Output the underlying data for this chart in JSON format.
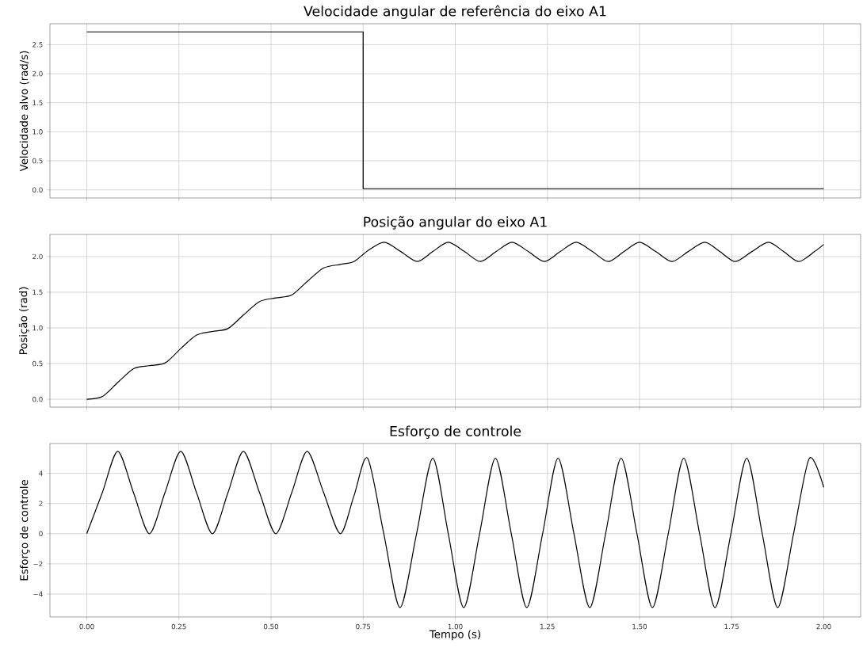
{
  "chart_data": [
    {
      "type": "step",
      "title": "Velocidade angular de referência do eixo A1",
      "ylabel": "Velocidade alvo (rad/s)",
      "color": "#000000",
      "grid": true,
      "tick_labels": "y",
      "x": [
        0,
        0.75,
        2.0
      ],
      "values": [
        2.72,
        0.02,
        0.02
      ],
      "xlim": [
        -0.1,
        2.1
      ],
      "ylim": [
        -0.14,
        2.86
      ],
      "xticks": [
        {
          "value": 0,
          "label": null
        },
        {
          "value": 0.25,
          "label": null
        },
        {
          "value": 0.5,
          "label": null
        },
        {
          "value": 0.75,
          "label": null
        },
        {
          "value": 1,
          "label": null
        },
        {
          "value": 1.25,
          "label": null
        },
        {
          "value": 1.5,
          "label": null
        },
        {
          "value": 1.75,
          "label": null
        },
        {
          "value": 2,
          "label": null
        }
      ],
      "yticks": [
        {
          "value": 0,
          "label": "0.0"
        },
        {
          "value": 0.5,
          "label": "0.5"
        },
        {
          "value": 1,
          "label": "1.0"
        },
        {
          "value": 1.5,
          "label": "1.5"
        },
        {
          "value": 2,
          "label": "2.0"
        },
        {
          "value": 2.5,
          "label": "2.5"
        }
      ]
    },
    {
      "type": "line",
      "title": "Posição angular do eixo A1",
      "ylabel": "Posição (rad)",
      "color": "#000000",
      "grid": true,
      "tick_labels": "y",
      "x": [
        0,
        0.043,
        0.085,
        0.128,
        0.17,
        0.213,
        0.255,
        0.298,
        0.341,
        0.383,
        0.425,
        0.469,
        0.513,
        0.556,
        0.598,
        0.643,
        0.688,
        0.725,
        0.762,
        0.807,
        0.852,
        0.897,
        0.939,
        0.981,
        1.025,
        1.068,
        1.111,
        1.154,
        1.198,
        1.242,
        1.285,
        1.328,
        1.372,
        1.415,
        1.458,
        1.5,
        1.544,
        1.588,
        1.632,
        1.677,
        1.718,
        1.76,
        1.805,
        1.85,
        1.891,
        1.932,
        1.975,
        2.0
      ],
      "values": [
        0,
        0.04,
        0.24,
        0.43,
        0.47,
        0.51,
        0.71,
        0.9,
        0.95,
        0.99,
        1.18,
        1.37,
        1.42,
        1.46,
        1.65,
        1.84,
        1.89,
        1.93,
        2.08,
        2.2,
        2.07,
        1.93,
        2.07,
        2.2,
        2.07,
        1.93,
        2.07,
        2.2,
        2.07,
        1.93,
        2.07,
        2.2,
        2.07,
        1.93,
        2.07,
        2.2,
        2.07,
        1.93,
        2.07,
        2.2,
        2.07,
        1.93,
        2.07,
        2.2,
        2.07,
        1.93,
        2.07,
        2.17
      ],
      "xlim": [
        -0.1,
        2.1
      ],
      "ylim": [
        -0.11,
        2.31
      ],
      "xticks": [
        {
          "value": 0,
          "label": null
        },
        {
          "value": 0.25,
          "label": null
        },
        {
          "value": 0.5,
          "label": null
        },
        {
          "value": 0.75,
          "label": null
        },
        {
          "value": 1,
          "label": null
        },
        {
          "value": 1.25,
          "label": null
        },
        {
          "value": 1.5,
          "label": null
        },
        {
          "value": 1.75,
          "label": null
        },
        {
          "value": 2,
          "label": null
        }
      ],
      "yticks": [
        {
          "value": 0,
          "label": "0.0"
        },
        {
          "value": 0.5,
          "label": "0.5"
        },
        {
          "value": 1,
          "label": "1.0"
        },
        {
          "value": 1.5,
          "label": "1.5"
        },
        {
          "value": 2,
          "label": "2.0"
        }
      ]
    },
    {
      "type": "line",
      "title": "Esforço de controle",
      "ylabel": "Esforço de controle",
      "xlabel": "Tempo (s)",
      "color": "#000000",
      "grid": true,
      "x": [
        0,
        0.042,
        0.084,
        0.127,
        0.17,
        0.212,
        0.255,
        0.298,
        0.341,
        0.383,
        0.425,
        0.469,
        0.513,
        0.556,
        0.598,
        0.643,
        0.688,
        0.725,
        0.762,
        0.806,
        0.85,
        0.895,
        0.939,
        0.981,
        1.023,
        1.066,
        1.109,
        1.152,
        1.194,
        1.237,
        1.279,
        1.322,
        1.365,
        1.408,
        1.45,
        1.493,
        1.535,
        1.578,
        1.62,
        1.663,
        1.705,
        1.748,
        1.791,
        1.833,
        1.875,
        1.918,
        1.961,
        2.0
      ],
      "values": [
        0,
        2.7,
        5.45,
        2.7,
        0,
        2.7,
        5.45,
        2.7,
        0,
        2.7,
        5.45,
        2.7,
        0,
        2.7,
        5.45,
        2.7,
        0,
        2.5,
        5.0,
        0,
        -4.9,
        0,
        5.0,
        0,
        -4.9,
        0,
        5.0,
        0,
        -4.9,
        0,
        5.0,
        0,
        -4.9,
        0,
        5.0,
        0,
        -4.9,
        0,
        5.0,
        0,
        -4.9,
        0,
        5.0,
        0,
        -4.9,
        0,
        5.0,
        3.06
      ],
      "xlim": [
        -0.1,
        2.1
      ],
      "ylim": [
        -5.52,
        5.97
      ],
      "xticks": [
        {
          "value": 0,
          "label": "0.00"
        },
        {
          "value": 0.25,
          "label": "0.25"
        },
        {
          "value": 0.5,
          "label": "0.50"
        },
        {
          "value": 0.75,
          "label": "0.75"
        },
        {
          "value": 1,
          "label": "1.00"
        },
        {
          "value": 1.25,
          "label": "1.25"
        },
        {
          "value": 1.5,
          "label": "1.50"
        },
        {
          "value": 1.75,
          "label": "1.75"
        },
        {
          "value": 2,
          "label": "2.00"
        }
      ],
      "yticks": [
        {
          "value": -4,
          "label": "−4"
        },
        {
          "value": -2,
          "label": "−2"
        },
        {
          "value": 0,
          "label": "0"
        },
        {
          "value": 2,
          "label": "2"
        },
        {
          "value": 4,
          "label": "4"
        }
      ]
    }
  ]
}
